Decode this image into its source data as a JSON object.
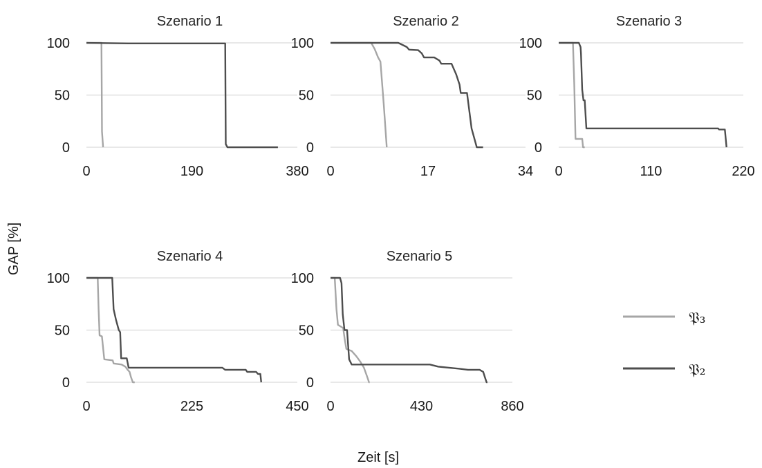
{
  "figure": {
    "ylabel": "GAP [%]",
    "xlabel": "Zeit [s]"
  },
  "legend": {
    "placement": "right",
    "entries": [
      {
        "name": "𝔓₃",
        "color": "#a6a6a6"
      },
      {
        "name": "𝔓₂",
        "color": "#4d4d4d"
      }
    ]
  },
  "chart_data": [
    {
      "type": "line",
      "title": "Szenario 1",
      "xlim": [
        0,
        380
      ],
      "xticks": [
        "0",
        "190",
        "380"
      ],
      "ylim": [
        0,
        100
      ],
      "yticks": [
        "0",
        "50",
        "100"
      ],
      "grid": true,
      "series": [
        {
          "name": "𝔓₃",
          "color": "#a6a6a6",
          "points": [
            [
              0,
              100
            ],
            [
              27,
              100
            ],
            [
              27.5,
              60
            ],
            [
              28,
              15
            ],
            [
              30,
              0
            ]
          ]
        },
        {
          "name": "𝔓₂",
          "color": "#4d4d4d",
          "points": [
            [
              0,
              100
            ],
            [
              75,
              99.5
            ],
            [
              250,
              99.5
            ],
            [
              251,
              3
            ],
            [
              254,
              0
            ],
            [
              345,
              0
            ]
          ]
        }
      ]
    },
    {
      "type": "line",
      "title": "Szenario 2",
      "xlim": [
        0,
        34
      ],
      "xticks": [
        "0",
        "17",
        "34"
      ],
      "ylim": [
        0,
        100
      ],
      "yticks": [
        "0",
        "50",
        "100"
      ],
      "grid": true,
      "series": [
        {
          "name": "𝔓₃",
          "color": "#a6a6a6",
          "points": [
            [
              0,
              100
            ],
            [
              7.1,
              100
            ],
            [
              7.7,
              94
            ],
            [
              8.3,
              86
            ],
            [
              8.7,
              82
            ],
            [
              9.3,
              40
            ],
            [
              9.8,
              0
            ]
          ]
        },
        {
          "name": "𝔓₂",
          "color": "#4d4d4d",
          "points": [
            [
              0,
              100
            ],
            [
              11.8,
              100
            ],
            [
              12.2,
              99
            ],
            [
              13.3,
              96
            ],
            [
              13.7,
              93.5
            ],
            [
              15.3,
              93
            ],
            [
              15.9,
              90
            ],
            [
              16.3,
              86
            ],
            [
              18.1,
              86
            ],
            [
              19,
              83
            ],
            [
              19.3,
              80
            ],
            [
              21.1,
              80
            ],
            [
              21.9,
              70
            ],
            [
              22.5,
              60
            ],
            [
              22.7,
              52
            ],
            [
              23.8,
              52
            ],
            [
              24.6,
              18
            ],
            [
              25.5,
              0
            ],
            [
              26.6,
              0
            ]
          ]
        }
      ]
    },
    {
      "type": "line",
      "title": "Szenario 3",
      "xlim": [
        0,
        220
      ],
      "xticks": [
        "0",
        "110",
        "220"
      ],
      "ylim": [
        0,
        100
      ],
      "yticks": [
        "0",
        "50",
        "100"
      ],
      "grid": true,
      "series": [
        {
          "name": "𝔓₃",
          "color": "#a6a6a6",
          "points": [
            [
              0,
              100
            ],
            [
              17,
              100
            ],
            [
              18.5,
              60
            ],
            [
              20,
              8
            ],
            [
              28,
              8
            ],
            [
              29,
              0
            ],
            [
              31,
              0
            ]
          ]
        },
        {
          "name": "𝔓₂",
          "color": "#4d4d4d",
          "points": [
            [
              0,
              100
            ],
            [
              24,
              100
            ],
            [
              26,
              96
            ],
            [
              26.5,
              90
            ],
            [
              28,
              55
            ],
            [
              29.5,
              45
            ],
            [
              31,
              45
            ],
            [
              33,
              18
            ],
            [
              190,
              18
            ],
            [
              191,
              17
            ],
            [
              198,
              17
            ],
            [
              200,
              0
            ]
          ]
        }
      ]
    },
    {
      "type": "line",
      "title": "Szenario 4",
      "xlim": [
        0,
        450
      ],
      "xticks": [
        "0",
        "225",
        "450"
      ],
      "ylim": [
        0,
        100
      ],
      "yticks": [
        "0",
        "50",
        "100"
      ],
      "grid": true,
      "series": [
        {
          "name": "𝔓₃",
          "color": "#a6a6a6",
          "points": [
            [
              0,
              100
            ],
            [
              24,
              100
            ],
            [
              26,
              70
            ],
            [
              28,
              45
            ],
            [
              33,
              44
            ],
            [
              38,
              22
            ],
            [
              56,
              21
            ],
            [
              58,
              18
            ],
            [
              75,
              17
            ],
            [
              83,
              15
            ],
            [
              88,
              12
            ],
            [
              92,
              10
            ],
            [
              95,
              5
            ],
            [
              99,
              0
            ],
            [
              103,
              0
            ]
          ]
        },
        {
          "name": "𝔓₂",
          "color": "#4d4d4d",
          "points": [
            [
              0,
              100
            ],
            [
              55,
              100
            ],
            [
              58,
              70
            ],
            [
              63,
              60
            ],
            [
              69,
              50
            ],
            [
              72,
              48
            ],
            [
              74,
              23
            ],
            [
              86,
              23
            ],
            [
              90,
              14
            ],
            [
              290,
              14
            ],
            [
              296,
              12
            ],
            [
              340,
              12
            ],
            [
              343,
              10
            ],
            [
              362,
              10
            ],
            [
              366,
              8
            ],
            [
              371,
              8
            ],
            [
              373,
              0
            ]
          ]
        }
      ]
    },
    {
      "type": "line",
      "title": "Szenario 5",
      "xlim": [
        0,
        860
      ],
      "xticks": [
        "0",
        "430",
        "860"
      ],
      "ylim": [
        0,
        100
      ],
      "yticks": [
        "0",
        "50",
        "100"
      ],
      "grid": true,
      "series": [
        {
          "name": "𝔓₃",
          "color": "#a6a6a6",
          "points": [
            [
              0,
              100
            ],
            [
              20,
              100
            ],
            [
              28,
              70
            ],
            [
              35,
              55
            ],
            [
              60,
              52
            ],
            [
              68,
              40
            ],
            [
              75,
              32
            ],
            [
              100,
              30
            ],
            [
              122,
              25
            ],
            [
              140,
              20
            ],
            [
              158,
              14
            ],
            [
              172,
              6
            ],
            [
              182,
              0
            ],
            [
              185,
              0
            ]
          ]
        },
        {
          "name": "𝔓₂",
          "color": "#4d4d4d",
          "points": [
            [
              0,
              100
            ],
            [
              45,
              100
            ],
            [
              52,
              95
            ],
            [
              58,
              65
            ],
            [
              66,
              50
            ],
            [
              78,
              50
            ],
            [
              88,
              22
            ],
            [
              100,
              17
            ],
            [
              470,
              17
            ],
            [
              510,
              15
            ],
            [
              560,
              14
            ],
            [
              610,
              13
            ],
            [
              650,
              12
            ],
            [
              705,
              12
            ],
            [
              722,
              10
            ],
            [
              730,
              5
            ],
            [
              738,
              0
            ],
            [
              742,
              0
            ]
          ]
        }
      ]
    }
  ]
}
